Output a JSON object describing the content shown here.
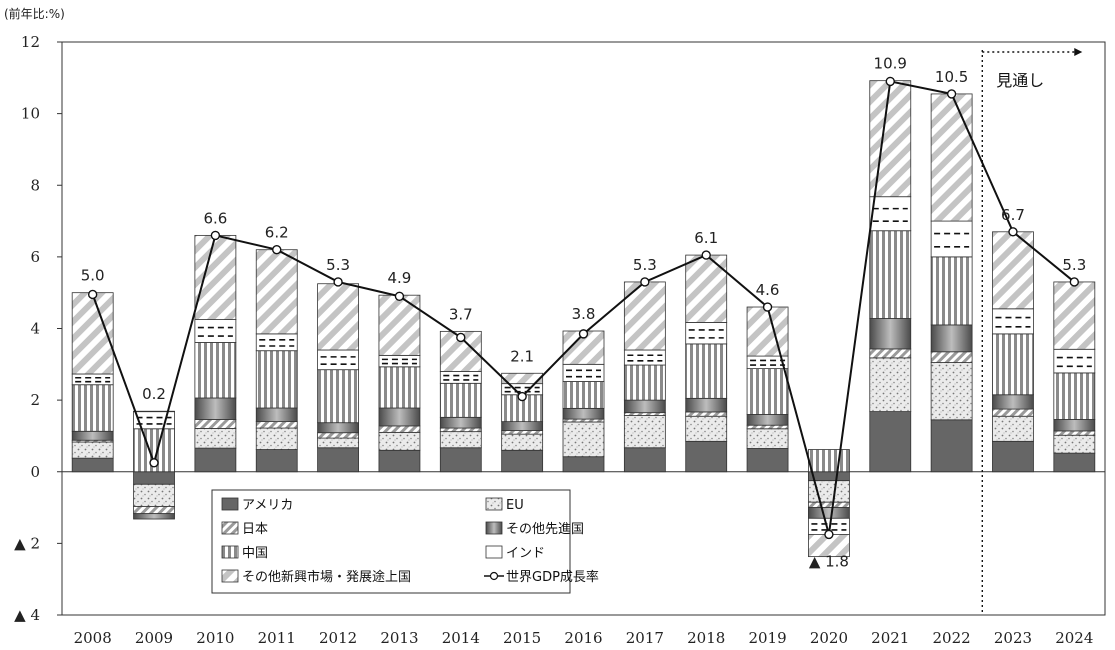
{
  "chart_data": {
    "type": "bar",
    "unit_label": "(前年比:%)",
    "categories": [
      "2008",
      "2009",
      "2010",
      "2011",
      "2012",
      "2013",
      "2014",
      "2015",
      "2016",
      "2017",
      "2018",
      "2019",
      "2020",
      "2021",
      "2022",
      "2023",
      "2024"
    ],
    "ylim": [
      -4,
      12
    ],
    "yticks": [
      {
        "value": 12,
        "label": "12"
      },
      {
        "value": 10,
        "label": "10"
      },
      {
        "value": 8,
        "label": "8"
      },
      {
        "value": 6,
        "label": "6"
      },
      {
        "value": 4,
        "label": "4"
      },
      {
        "value": 2,
        "label": "2"
      },
      {
        "value": 0,
        "label": "0"
      },
      {
        "value": -2,
        "label": "▲ 2"
      },
      {
        "value": -4,
        "label": "▲ 4"
      }
    ],
    "series": [
      {
        "name": "アメリカ",
        "key": "us",
        "fill": "#666666",
        "values": [
          0.38,
          -0.35,
          0.66,
          0.62,
          0.67,
          0.6,
          0.67,
          0.6,
          0.42,
          0.67,
          0.85,
          0.65,
          -0.25,
          1.68,
          1.45,
          0.85,
          0.52
        ]
      },
      {
        "name": "EU",
        "key": "eu",
        "fill": "url(#pat-eu)",
        "values": [
          0.45,
          -0.62,
          0.55,
          0.6,
          0.27,
          0.5,
          0.45,
          0.45,
          0.97,
          0.9,
          0.7,
          0.55,
          -0.6,
          1.5,
          1.6,
          0.7,
          0.5
        ]
      },
      {
        "name": "日本",
        "key": "jp",
        "fill": "url(#pat-jp)",
        "values": [
          0.05,
          -0.2,
          0.25,
          0.18,
          0.15,
          0.18,
          0.1,
          0.1,
          0.08,
          0.08,
          0.12,
          0.1,
          -0.15,
          0.25,
          0.3,
          0.2,
          0.12
        ]
      },
      {
        "name": "その他先進国",
        "key": "oth_adv",
        "fill": "url(#pat-oth)",
        "values": [
          0.25,
          -0.15,
          0.6,
          0.38,
          0.28,
          0.5,
          0.3,
          0.25,
          0.3,
          0.35,
          0.38,
          0.3,
          -0.3,
          0.85,
          0.75,
          0.4,
          0.32
        ]
      },
      {
        "name": "中国",
        "key": "cn",
        "fill": "url(#pat-cn)",
        "values": [
          1.3,
          1.2,
          1.55,
          1.6,
          1.48,
          1.15,
          0.95,
          0.75,
          0.75,
          0.98,
          1.52,
          1.28,
          0.62,
          2.45,
          1.9,
          1.7,
          1.3
        ]
      },
      {
        "name": "インド",
        "key": "in",
        "fill": "url(#pat-in)",
        "values": [
          0.3,
          0.48,
          0.64,
          0.47,
          0.55,
          0.32,
          0.33,
          0.31,
          0.48,
          0.42,
          0.6,
          0.35,
          -0.45,
          0.95,
          1.0,
          0.7,
          0.66
        ]
      },
      {
        "name": "その他新興市場・発展途上国",
        "key": "oth_em",
        "fill": "url(#pat-em)",
        "values": [
          2.27,
          0.01,
          2.35,
          2.35,
          1.85,
          1.68,
          1.12,
          0.29,
          0.93,
          1.9,
          1.88,
          1.37,
          -0.62,
          3.24,
          3.55,
          2.15,
          1.88
        ]
      }
    ],
    "line": {
      "name": "世界GDP成長率",
      "values": [
        4.95,
        0.25,
        6.6,
        6.2,
        5.3,
        4.9,
        3.75,
        2.1,
        3.85,
        5.3,
        6.05,
        4.6,
        -1.75,
        10.9,
        10.55,
        6.7,
        5.3
      ]
    },
    "data_labels": [
      "5.0",
      "0.2",
      "6.6",
      "6.2",
      "5.3",
      "4.9",
      "3.7",
      "2.1",
      "3.8",
      "5.3",
      "6.1",
      "4.6",
      "▲ 1.8",
      "10.9",
      "10.5",
      "6.7",
      "5.3"
    ],
    "forecast": {
      "label": "見通し",
      "from_category": "2023"
    },
    "legend": {
      "placement": "bottom-left inside plot",
      "items": [
        {
          "label": "アメリカ",
          "series": "us"
        },
        {
          "label": "EU",
          "series": "eu"
        },
        {
          "label": "日本",
          "series": "jp"
        },
        {
          "label": "その他先進国",
          "series": "oth_adv"
        },
        {
          "label": "中国",
          "series": "cn"
        },
        {
          "label": "インド",
          "series": "in"
        },
        {
          "label": "その他新興市場・発展途上国",
          "series": "oth_em"
        },
        {
          "label": "世界GDP成長率",
          "series": "line"
        }
      ]
    }
  }
}
